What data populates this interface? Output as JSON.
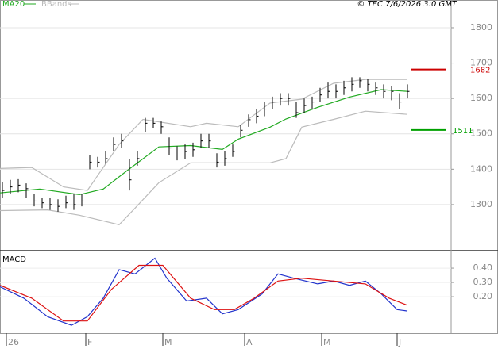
{
  "chart_data": [
    {
      "type": "hlc",
      "source": "© TEC 7/6/2026 3:0 GMT",
      "xlim": [
        -0.3,
        56.5
      ],
      "ylim": [
        1172,
        1856
      ],
      "yticks": [
        1300,
        1400,
        1500,
        1600,
        1700,
        1800
      ],
      "grid": true,
      "x": [
        0,
        1,
        2,
        3,
        4,
        5,
        6,
        7,
        8,
        9,
        10,
        11,
        12,
        13,
        14,
        15,
        16,
        17,
        18,
        19,
        20,
        21,
        22,
        23,
        24,
        25,
        26,
        27,
        28,
        29,
        30,
        31,
        32,
        33,
        34,
        35,
        36,
        37,
        38,
        39,
        40,
        41,
        42,
        43,
        44,
        45,
        46,
        47,
        48,
        49,
        50,
        51
      ],
      "high": [
        1365,
        1370,
        1372,
        1360,
        1330,
        1320,
        1318,
        1315,
        1325,
        1330,
        1330,
        1440,
        1435,
        1450,
        1490,
        1500,
        1430,
        1450,
        1545,
        1545,
        1535,
        1490,
        1465,
        1470,
        1475,
        1500,
        1500,
        1445,
        1450,
        1470,
        1525,
        1555,
        1570,
        1590,
        1605,
        1615,
        1615,
        1590,
        1600,
        1605,
        1630,
        1645,
        1640,
        1650,
        1660,
        1660,
        1655,
        1645,
        1640,
        1635,
        1615,
        1640
      ],
      "low": [
        1320,
        1330,
        1335,
        1320,
        1295,
        1290,
        1285,
        1280,
        1290,
        1285,
        1295,
        1400,
        1405,
        1415,
        1450,
        1460,
        1340,
        1410,
        1505,
        1515,
        1500,
        1440,
        1425,
        1430,
        1435,
        1460,
        1460,
        1405,
        1410,
        1435,
        1490,
        1520,
        1530,
        1550,
        1570,
        1580,
        1580,
        1545,
        1560,
        1570,
        1590,
        1600,
        1600,
        1610,
        1620,
        1630,
        1620,
        1610,
        1600,
        1595,
        1570,
        1600
      ],
      "close": [
        1340,
        1350,
        1355,
        1345,
        1310,
        1305,
        1300,
        1295,
        1305,
        1300,
        1310,
        1420,
        1420,
        1430,
        1470,
        1480,
        1370,
        1430,
        1530,
        1530,
        1520,
        1460,
        1440,
        1450,
        1455,
        1480,
        1480,
        1420,
        1430,
        1450,
        1510,
        1540,
        1550,
        1570,
        1590,
        1600,
        1600,
        1560,
        1580,
        1590,
        1610,
        1620,
        1620,
        1630,
        1640,
        1650,
        1640,
        1630,
        1620,
        1620,
        1590,
        1620
      ],
      "color": "#000000",
      "series": [
        {
          "name": "MA20",
          "color": "#22aa22",
          "x": [
            -0.3,
            4.7,
            9.7,
            12.7,
            15.7,
            19.7,
            23.7,
            27.7,
            29.7,
            33.7,
            35.7,
            39.7,
            43.7,
            47.7,
            51
          ],
          "values": [
            1333,
            1344,
            1328,
            1344,
            1396,
            1463,
            1467,
            1456,
            1485,
            1519,
            1542,
            1575,
            1604,
            1625,
            1620
          ]
        },
        {
          "name": "BBands",
          "color": "#bbbbbb",
          "x": [
            -0.3,
            3.7,
            7.7,
            10.7,
            14.7,
            17.7,
            23.7,
            25.7,
            29.7,
            33.7,
            37.7,
            41.7,
            45.7,
            51
          ],
          "upper": [
            1402,
            1405,
            1350,
            1340,
            1470,
            1541,
            1520,
            1530,
            1520,
            1587,
            1598,
            1643,
            1654,
            1654
          ],
          "x_lower": [
            -0.3,
            5.7,
            9.7,
            14.7,
            16.7,
            19.7,
            23.7,
            27.7,
            33.7,
            35.7,
            37.7,
            41.7,
            45.7,
            51
          ],
          "lower": [
            1283,
            1285,
            1270,
            1243,
            1290,
            1362,
            1418,
            1418,
            1418,
            1430,
            1519,
            1541,
            1564,
            1555
          ]
        }
      ],
      "levels": [
        {
          "value": 1682,
          "color": "#cc0000"
        },
        {
          "value": 1511,
          "color": "#00a000"
        }
      ]
    },
    {
      "type": "line",
      "title": "MACD",
      "xlim": [
        -0.3,
        56.5
      ],
      "ylim": [
        -0.044,
        0.517
      ],
      "yticks": [
        {
          "value": 0.4,
          "label": "0.40"
        },
        {
          "value": 0.3,
          "label": "0.30"
        },
        {
          "value": 0.2,
          "label": "0.20"
        }
      ],
      "xticks": [
        {
          "value": 0.5,
          "label": "26"
        },
        {
          "value": 10.5,
          "label": "F"
        },
        {
          "value": 20.2,
          "label": "M"
        },
        {
          "value": 30.5,
          "label": "A"
        },
        {
          "value": 40.2,
          "label": "M"
        },
        {
          "value": 49.7,
          "label": "J"
        }
      ],
      "series": [
        {
          "color": "#2233cc",
          "x": [
            -0.3,
            2.7,
            5.7,
            8.7,
            10.7,
            12.7,
            14.7,
            16.7,
            19.2,
            20.7,
            23.2,
            25.7,
            27.7,
            29.7,
            32.7,
            34.7,
            36.7,
            39.7,
            41.7,
            43.7,
            45.7,
            47.7,
            49.7,
            51
          ],
          "values": [
            0.27,
            0.19,
            0.06,
            0.0,
            0.06,
            0.19,
            0.39,
            0.36,
            0.47,
            0.33,
            0.17,
            0.19,
            0.08,
            0.11,
            0.22,
            0.36,
            0.33,
            0.29,
            0.31,
            0.28,
            0.31,
            0.22,
            0.11,
            0.1
          ]
        },
        {
          "color": "#dd1111",
          "x": [
            -0.3,
            3.7,
            7.7,
            10.7,
            13.7,
            17.2,
            20.2,
            23.7,
            26.7,
            29.2,
            31.7,
            34.7,
            37.7,
            41.7,
            45.7,
            48.7,
            51
          ],
          "values": [
            0.28,
            0.19,
            0.03,
            0.03,
            0.25,
            0.42,
            0.42,
            0.19,
            0.11,
            0.11,
            0.19,
            0.31,
            0.33,
            0.31,
            0.29,
            0.19,
            0.14
          ]
        }
      ]
    }
  ]
}
